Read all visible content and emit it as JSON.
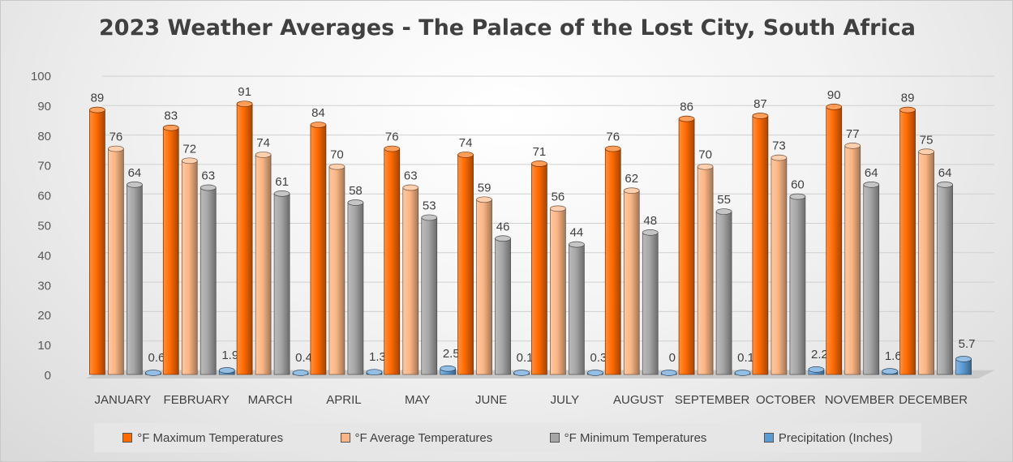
{
  "chart_data": {
    "type": "bar",
    "title": "2023 Weather Averages - The Palace of the Lost City, South Africa",
    "categories": [
      "JANUARY",
      "FEBRUARY",
      "MARCH",
      "APRIL",
      "MAY",
      "JUNE",
      "JULY",
      "AUGUST",
      "SEPTEMBER",
      "OCTOBER",
      "NOVEMBER",
      "DECEMBER"
    ],
    "ylim": [
      0,
      100
    ],
    "yticks": [
      0,
      10,
      20,
      30,
      40,
      50,
      60,
      70,
      80,
      90,
      100
    ],
    "grid": true,
    "legend_position": "bottom",
    "series": [
      {
        "name": "°F Maximum Temperatures",
        "color": "#ff6a00",
        "values": [
          89,
          83,
          91,
          84,
          76,
          74,
          71,
          76,
          86,
          87,
          90,
          89
        ]
      },
      {
        "name": "°F Average Temperatures",
        "color": "#fbb584",
        "values": [
          76,
          72,
          74,
          70,
          63,
          59,
          56,
          62,
          70,
          73,
          77,
          75
        ]
      },
      {
        "name": "°F Minimum Temperatures",
        "color": "#a6a6a6",
        "values": [
          64,
          63,
          61,
          58,
          53,
          46,
          44,
          48,
          55,
          60,
          64,
          64
        ]
      },
      {
        "name": "Precipitation (Inches)",
        "color": "#5b9bd5",
        "values": [
          0.6,
          1.9,
          0.4,
          1.3,
          2.5,
          0.1,
          0.3,
          0,
          0.1,
          2.2,
          1.6,
          5.7
        ]
      }
    ]
  }
}
